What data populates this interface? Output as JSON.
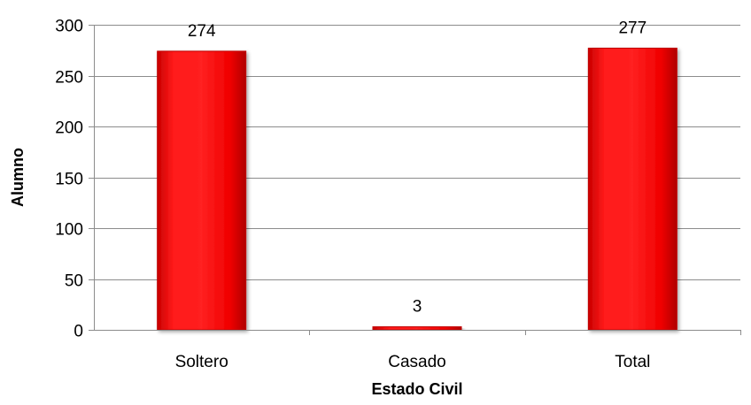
{
  "chart_data": {
    "type": "bar",
    "title": "",
    "xlabel": "Estado Civil",
    "ylabel": "Alumno",
    "categories": [
      "Soltero",
      "Casado",
      "Total"
    ],
    "values": [
      274,
      3,
      277
    ],
    "data_labels": [
      "274",
      "3",
      "277"
    ],
    "ylim": [
      0,
      300
    ],
    "yticks": [
      0,
      50,
      100,
      150,
      200,
      250,
      300
    ],
    "ytick_labels": [
      "0",
      "50",
      "100",
      "150",
      "200",
      "250",
      "300"
    ],
    "grid": true,
    "legend": "none",
    "bar_color": "#ff0000",
    "bar_edge_color": "#c00000"
  }
}
